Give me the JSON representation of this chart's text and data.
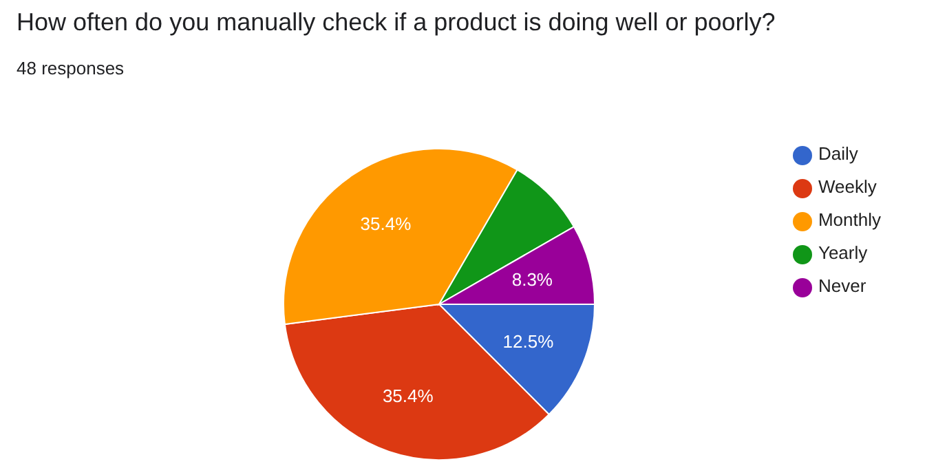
{
  "chart_data": {
    "type": "pie",
    "title": "How often do you manually check if a product is doing well or poorly?",
    "subtitle": "48 responses",
    "categories": [
      "Daily",
      "Weekly",
      "Monthly",
      "Yearly",
      "Never"
    ],
    "values": [
      12.5,
      35.4,
      35.4,
      8.3,
      8.3
    ],
    "colors": [
      "#3366cc",
      "#dc3912",
      "#ff9900",
      "#109618",
      "#990099"
    ],
    "value_labels": [
      "12.5%",
      "35.4%",
      "35.4%",
      null,
      "8.3%"
    ],
    "legend": "right"
  }
}
